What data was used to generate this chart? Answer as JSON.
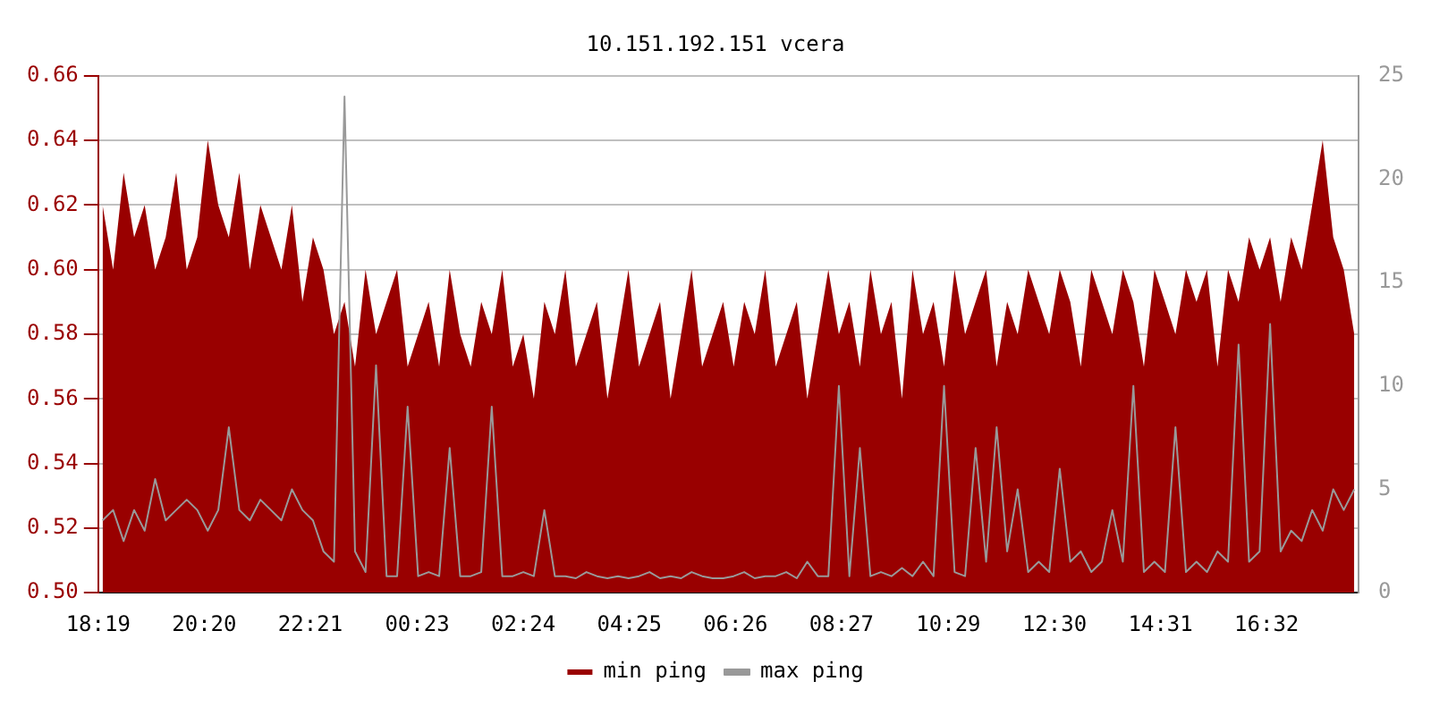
{
  "chart_data": {
    "type": "area",
    "title": "10.151.192.151 vcera",
    "x": [
      "--01-01T18:24",
      "--01-01T18:36",
      "--01-01T18:48",
      "--01-01T19:00",
      "--01-01T19:12",
      "--01-01T19:24",
      "--01-01T19:36",
      "--01-01T19:48",
      "--01-01T20:00",
      "--01-01T20:12",
      "--01-01T20:24",
      "--01-01T20:36",
      "--01-01T20:48",
      "--01-01T21:00",
      "--01-01T21:12",
      "--01-01T21:24",
      "--01-01T21:36",
      "--01-01T21:48",
      "--01-01T22:00",
      "--01-01T22:12",
      "--01-01T22:24",
      "--01-01T22:36",
      "--01-01T22:48",
      "--01-01T23:00",
      "--01-01T23:12",
      "--01-01T23:24",
      "--01-01T23:36",
      "--01-01T23:48",
      "--01-02T00:00",
      "--01-02T00:12",
      "--01-02T00:24",
      "--01-02T00:36",
      "--01-02T00:48",
      "--01-02T01:00",
      "--01-02T01:12",
      "--01-02T01:24",
      "--01-02T01:36",
      "--01-02T01:48",
      "--01-02T02:00",
      "--01-02T02:12",
      "--01-02T02:24",
      "--01-02T02:36",
      "--01-02T02:48",
      "--01-02T03:00",
      "--01-02T03:12",
      "--01-02T03:24",
      "--01-02T03:36",
      "--01-02T03:48",
      "--01-02T04:00",
      "--01-02T04:12",
      "--01-02T04:24",
      "--01-02T04:36",
      "--01-02T04:48",
      "--01-02T05:00",
      "--01-02T05:12",
      "--01-02T05:24",
      "--01-02T05:36",
      "--01-02T05:48",
      "--01-02T06:00",
      "--01-02T06:12",
      "--01-02T06:24",
      "--01-02T06:36",
      "--01-02T06:48",
      "--01-02T07:00",
      "--01-02T07:12",
      "--01-02T07:24",
      "--01-02T07:36",
      "--01-02T07:48",
      "--01-02T08:00",
      "--01-02T08:12",
      "--01-02T08:24",
      "--01-02T08:36",
      "--01-02T08:48",
      "--01-02T09:00",
      "--01-02T09:12",
      "--01-02T09:24",
      "--01-02T09:36",
      "--01-02T09:48",
      "--01-02T10:00",
      "--01-02T10:12",
      "--01-02T10:24",
      "--01-02T10:36",
      "--01-02T10:48",
      "--01-02T11:00",
      "--01-02T11:12",
      "--01-02T11:24",
      "--01-02T11:36",
      "--01-02T11:48",
      "--01-02T12:00",
      "--01-02T12:12",
      "--01-02T12:24",
      "--01-02T12:36",
      "--01-02T12:48",
      "--01-02T13:00",
      "--01-02T13:12",
      "--01-02T13:24",
      "--01-02T13:36",
      "--01-02T13:48",
      "--01-02T14:00",
      "--01-02T14:12",
      "--01-02T14:24",
      "--01-02T14:36",
      "--01-02T14:48",
      "--01-02T15:00",
      "--01-02T15:12",
      "--01-02T15:24",
      "--01-02T15:36",
      "--01-02T15:48",
      "--01-02T16:00",
      "--01-02T16:12",
      "--01-02T16:24",
      "--01-02T16:36",
      "--01-02T16:48",
      "--01-02T17:00",
      "--01-02T17:12",
      "--01-02T17:24",
      "--01-02T17:36",
      "--01-02T17:48",
      "--01-02T18:00",
      "--01-02T18:12"
    ],
    "series": [
      {
        "name": "min ping",
        "color": "#990000",
        "values": [
          0.62,
          0.6,
          0.63,
          0.61,
          0.62,
          0.6,
          0.61,
          0.63,
          0.6,
          0.61,
          0.64,
          0.62,
          0.61,
          0.63,
          0.6,
          0.62,
          0.61,
          0.6,
          0.62,
          0.59,
          0.61,
          0.6,
          0.58,
          0.59,
          0.57,
          0.6,
          0.58,
          0.59,
          0.6,
          0.57,
          0.58,
          0.59,
          0.57,
          0.6,
          0.58,
          0.57,
          0.59,
          0.58,
          0.6,
          0.57,
          0.58,
          0.56,
          0.59,
          0.58,
          0.6,
          0.57,
          0.58,
          0.59,
          0.56,
          0.58,
          0.6,
          0.57,
          0.58,
          0.59,
          0.56,
          0.58,
          0.6,
          0.57,
          0.58,
          0.59,
          0.57,
          0.59,
          0.58,
          0.6,
          0.57,
          0.58,
          0.59,
          0.56,
          0.58,
          0.6,
          0.58,
          0.59,
          0.57,
          0.6,
          0.58,
          0.59,
          0.56,
          0.6,
          0.58,
          0.59,
          0.57,
          0.6,
          0.58,
          0.59,
          0.6,
          0.57,
          0.59,
          0.58,
          0.6,
          0.59,
          0.58,
          0.6,
          0.59,
          0.57,
          0.6,
          0.59,
          0.58,
          0.6,
          0.59,
          0.57,
          0.6,
          0.59,
          0.58,
          0.6,
          0.59,
          0.6,
          0.57,
          0.6,
          0.59,
          0.61,
          0.6,
          0.61,
          0.59,
          0.61,
          0.6,
          0.62,
          0.64,
          0.61,
          0.6,
          0.58
        ]
      },
      {
        "name": "max ping",
        "type": "line",
        "axis": "y2",
        "color": "#999999",
        "values": [
          3.5,
          4,
          2.5,
          4,
          3,
          5.5,
          3.5,
          4,
          4.5,
          4,
          3,
          4,
          8,
          4,
          3.5,
          4.5,
          4,
          3.5,
          5,
          4,
          3.5,
          2,
          1.5,
          24,
          2,
          1,
          11,
          0.8,
          0.8,
          9,
          0.8,
          1,
          0.8,
          7,
          0.8,
          0.8,
          1,
          9,
          0.8,
          0.8,
          1,
          0.8,
          4,
          0.8,
          0.8,
          0.7,
          1,
          0.8,
          0.7,
          0.8,
          0.7,
          0.8,
          1,
          0.7,
          0.8,
          0.7,
          1,
          0.8,
          0.7,
          0.7,
          0.8,
          1,
          0.7,
          0.8,
          0.8,
          1,
          0.7,
          1.5,
          0.8,
          0.8,
          10,
          0.8,
          7,
          0.8,
          1,
          0.8,
          1.2,
          0.8,
          1.5,
          0.8,
          10,
          1,
          0.8,
          7,
          1.5,
          8,
          2,
          5,
          1,
          1.5,
          1,
          6,
          1.5,
          2,
          1,
          1.5,
          4,
          1.5,
          10,
          1,
          1.5,
          1,
          8,
          1,
          1.5,
          1,
          2,
          1.5,
          12,
          1.5,
          2,
          13,
          2,
          3,
          2.5,
          4,
          3,
          5,
          4,
          5
        ]
      }
    ],
    "xlim": [
      "--01-01T18:19",
      "--01-02T18:17"
    ],
    "xticks": [
      {
        "value": "--01-01T18:19",
        "label": "18:19"
      },
      {
        "value": "--01-01T20:20",
        "label": "20:20"
      },
      {
        "value": "--01-01T22:21",
        "label": "22:21"
      },
      {
        "value": "--01-02T00:23",
        "label": "00:23"
      },
      {
        "value": "--01-02T02:24",
        "label": "02:24"
      },
      {
        "value": "--01-02T04:25",
        "label": "04:25"
      },
      {
        "value": "--01-02T06:26",
        "label": "06:26"
      },
      {
        "value": "--01-02T08:27",
        "label": "08:27"
      },
      {
        "value": "--01-02T10:29",
        "label": "10:29"
      },
      {
        "value": "--01-02T12:30",
        "label": "12:30"
      },
      {
        "value": "--01-02T14:31",
        "label": "14:31"
      },
      {
        "value": "--01-02T16:32",
        "label": "16:32"
      }
    ],
    "ylim": [
      0.5,
      0.66
    ],
    "yticks": [
      {
        "value": 0.5,
        "label": "0.50"
      },
      {
        "value": 0.52,
        "label": "0.52"
      },
      {
        "value": 0.54,
        "label": "0.54"
      },
      {
        "value": 0.56,
        "label": "0.56"
      },
      {
        "value": 0.58,
        "label": "0.58"
      },
      {
        "value": 0.6,
        "label": "0.60"
      },
      {
        "value": 0.62,
        "label": "0.62"
      },
      {
        "value": 0.64,
        "label": "0.64"
      },
      {
        "value": 0.66,
        "label": "0.66"
      }
    ],
    "y2lim": [
      0,
      25
    ],
    "y2ticks": [
      0,
      5,
      10,
      15,
      20,
      25
    ],
    "grid": "y",
    "legend": "bottom"
  }
}
